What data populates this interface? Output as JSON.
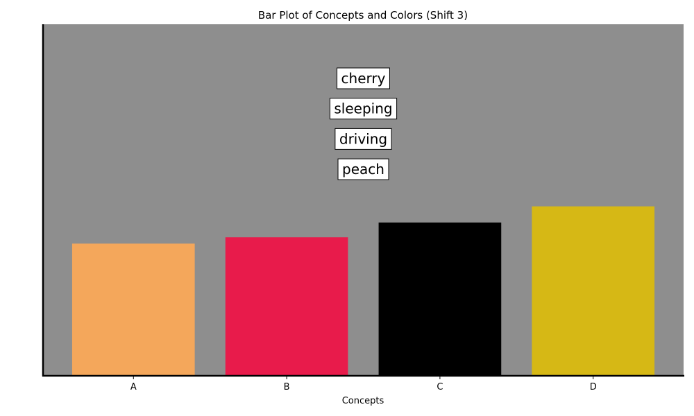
{
  "chart_data": {
    "type": "bar",
    "title": "Bar Plot of Concepts and Colors (Shift 3)",
    "xlabel": "Concepts",
    "ylabel": "",
    "categories": [
      "A",
      "B",
      "C",
      "D"
    ],
    "values": [
      0.376,
      0.394,
      0.436,
      0.482
    ],
    "colors": [
      "#f4a75b",
      "#e81b4b",
      "#000000",
      "#d6b815"
    ],
    "ylim": [
      0,
      1
    ],
    "y_ticks_shown": false,
    "grid": false,
    "background_color": "#8e8e8e",
    "annotations": [
      "cherry",
      "sleeping",
      "driving",
      "peach"
    ]
  }
}
